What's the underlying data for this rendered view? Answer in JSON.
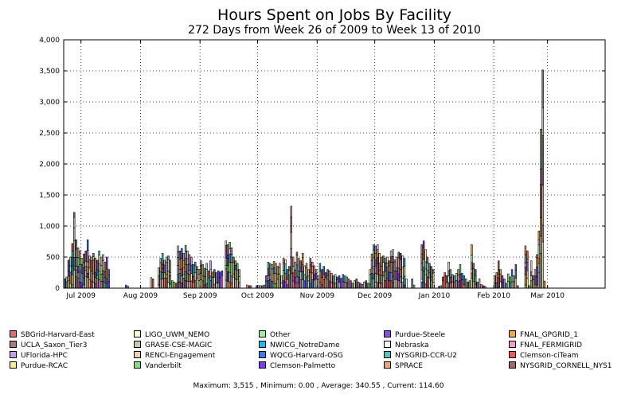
{
  "chart_data": {
    "type": "bar",
    "stacked": true,
    "title": "Hours Spent on Jobs By Facility",
    "subtitle": "272 Days from Week 26 of 2009 to Week 13 of 2010",
    "xlabel": "",
    "ylabel": "",
    "ylim": [
      0,
      4000
    ],
    "y_ticks": [
      "0",
      "500",
      "1,000",
      "1,500",
      "2,000",
      "2,500",
      "3,000",
      "3,500",
      "4,000"
    ],
    "x_ticks": [
      "Jul 2009",
      "Aug 2009",
      "Sep 2009",
      "Oct 2009",
      "Nov 2009",
      "Dec 2009",
      "Jan 2010",
      "Feb 2010",
      "Mar 2010"
    ],
    "grid": true,
    "legend_position": "bottom",
    "series": [
      {
        "name": "SBGrid-Harvard-East",
        "color": "#e66c6c"
      },
      {
        "name": "UCLA_Saxon_Tier3",
        "color": "#b07a7a"
      },
      {
        "name": "UFlorida-HPC",
        "color": "#c79bf0"
      },
      {
        "name": "Purdue-RCAC",
        "color": "#f5f08c"
      },
      {
        "name": "LIGO_UWM_NEMO",
        "color": "#fdfdc8"
      },
      {
        "name": "GRASE-CSE-MAGIC",
        "color": "#c8c8a8"
      },
      {
        "name": "RENCI-Engagement",
        "color": "#f6cfa6"
      },
      {
        "name": "Vanderbilt",
        "color": "#7ce37c"
      },
      {
        "name": "Other",
        "color": "#a6eaa6"
      },
      {
        "name": "NWICG_NotreDame",
        "color": "#2bb5e8"
      },
      {
        "name": "WQCG-Harvard-OSG",
        "color": "#3f7ee8"
      },
      {
        "name": "Clemson-Palmetto",
        "color": "#7b3ee8"
      },
      {
        "name": "Purdue-Steele",
        "color": "#8a4ce8"
      },
      {
        "name": "Nebraska",
        "color": "#ffffff"
      },
      {
        "name": "NYSGRID-CCR-U2",
        "color": "#4ec8c0"
      },
      {
        "name": "SPRACE",
        "color": "#f3a66c"
      },
      {
        "name": "FNAL_GPGRID_1",
        "color": "#f0a850"
      },
      {
        "name": "FNAL_FERMIGRID",
        "color": "#f29cc8"
      },
      {
        "name": "Clemson-ciTeam",
        "color": "#e85a5a"
      },
      {
        "name": "NYSGRID_CORNELL_NYS1",
        "color": "#9c6a6a"
      }
    ],
    "x_start": "2009-06-22",
    "x_end": "2010-03-31",
    "daily_totals": [
      {
        "date": "2009-06-22",
        "value": 150
      },
      {
        "date": "2009-06-23",
        "value": 180
      },
      {
        "date": "2009-06-24",
        "value": 450
      },
      {
        "date": "2009-06-25",
        "value": 500
      },
      {
        "date": "2009-06-26",
        "value": 720
      },
      {
        "date": "2009-06-27",
        "value": 1220
      },
      {
        "date": "2009-06-28",
        "value": 780
      },
      {
        "date": "2009-06-29",
        "value": 650
      },
      {
        "date": "2009-06-30",
        "value": 600
      },
      {
        "date": "2009-07-01",
        "value": 480
      },
      {
        "date": "2009-07-02",
        "value": 550
      },
      {
        "date": "2009-07-03",
        "value": 600
      },
      {
        "date": "2009-07-04",
        "value": 780
      },
      {
        "date": "2009-07-05",
        "value": 520
      },
      {
        "date": "2009-07-06",
        "value": 500
      },
      {
        "date": "2009-07-07",
        "value": 560
      },
      {
        "date": "2009-07-08",
        "value": 480
      },
      {
        "date": "2009-07-09",
        "value": 450
      },
      {
        "date": "2009-07-10",
        "value": 600
      },
      {
        "date": "2009-07-11",
        "value": 500
      },
      {
        "date": "2009-07-12",
        "value": 540
      },
      {
        "date": "2009-07-13",
        "value": 420
      },
      {
        "date": "2009-07-14",
        "value": 500
      },
      {
        "date": "2009-07-15",
        "value": 300
      },
      {
        "date": "2009-07-24",
        "value": 50
      },
      {
        "date": "2009-07-25",
        "value": 30
      },
      {
        "date": "2009-08-06",
        "value": 170
      },
      {
        "date": "2009-08-07",
        "value": 150
      },
      {
        "date": "2009-08-10",
        "value": 330
      },
      {
        "date": "2009-08-11",
        "value": 480
      },
      {
        "date": "2009-08-12",
        "value": 560
      },
      {
        "date": "2009-08-13",
        "value": 450
      },
      {
        "date": "2009-08-14",
        "value": 500
      },
      {
        "date": "2009-08-15",
        "value": 520
      },
      {
        "date": "2009-08-16",
        "value": 450
      },
      {
        "date": "2009-08-17",
        "value": 120
      },
      {
        "date": "2009-08-18",
        "value": 100
      },
      {
        "date": "2009-08-19",
        "value": 80
      },
      {
        "date": "2009-08-20",
        "value": 680
      },
      {
        "date": "2009-08-21",
        "value": 600
      },
      {
        "date": "2009-08-22",
        "value": 640
      },
      {
        "date": "2009-08-23",
        "value": 560
      },
      {
        "date": "2009-08-24",
        "value": 690
      },
      {
        "date": "2009-08-25",
        "value": 600
      },
      {
        "date": "2009-08-26",
        "value": 540
      },
      {
        "date": "2009-08-27",
        "value": 500
      },
      {
        "date": "2009-08-28",
        "value": 380
      },
      {
        "date": "2009-08-29",
        "value": 420
      },
      {
        "date": "2009-08-30",
        "value": 350
      },
      {
        "date": "2009-08-31",
        "value": 300
      },
      {
        "date": "2009-09-01",
        "value": 440
      },
      {
        "date": "2009-09-02",
        "value": 380
      },
      {
        "date": "2009-09-03",
        "value": 320
      },
      {
        "date": "2009-09-04",
        "value": 400
      },
      {
        "date": "2009-09-05",
        "value": 280
      },
      {
        "date": "2009-09-06",
        "value": 440
      },
      {
        "date": "2009-09-07",
        "value": 260
      },
      {
        "date": "2009-09-08",
        "value": 300
      },
      {
        "date": "2009-09-09",
        "value": 250
      },
      {
        "date": "2009-09-10",
        "value": 280
      },
      {
        "date": "2009-09-11",
        "value": 260
      },
      {
        "date": "2009-09-12",
        "value": 280
      },
      {
        "date": "2009-09-14",
        "value": 760
      },
      {
        "date": "2009-09-15",
        "value": 700
      },
      {
        "date": "2009-09-16",
        "value": 740
      },
      {
        "date": "2009-09-17",
        "value": 650
      },
      {
        "date": "2009-09-18",
        "value": 500
      },
      {
        "date": "2009-09-19",
        "value": 440
      },
      {
        "date": "2009-09-20",
        "value": 400
      },
      {
        "date": "2009-09-21",
        "value": 300
      },
      {
        "date": "2009-09-25",
        "value": 50
      },
      {
        "date": "2009-09-26",
        "value": 40
      },
      {
        "date": "2009-09-27",
        "value": 40
      },
      {
        "date": "2009-09-30",
        "value": 40
      },
      {
        "date": "2009-10-01",
        "value": 40
      },
      {
        "date": "2009-10-02",
        "value": 40
      },
      {
        "date": "2009-10-03",
        "value": 40
      },
      {
        "date": "2009-10-04",
        "value": 50
      },
      {
        "date": "2009-10-05",
        "value": 200
      },
      {
        "date": "2009-10-06",
        "value": 420
      },
      {
        "date": "2009-10-07",
        "value": 400
      },
      {
        "date": "2009-10-08",
        "value": 380
      },
      {
        "date": "2009-10-09",
        "value": 430
      },
      {
        "date": "2009-10-10",
        "value": 400
      },
      {
        "date": "2009-10-11",
        "value": 350
      },
      {
        "date": "2009-10-12",
        "value": 400
      },
      {
        "date": "2009-10-13",
        "value": 200
      },
      {
        "date": "2009-10-14",
        "value": 480
      },
      {
        "date": "2009-10-15",
        "value": 460
      },
      {
        "date": "2009-10-16",
        "value": 300
      },
      {
        "date": "2009-10-17",
        "value": 350
      },
      {
        "date": "2009-10-18",
        "value": 1320
      },
      {
        "date": "2009-10-19",
        "value": 500
      },
      {
        "date": "2009-10-20",
        "value": 420
      },
      {
        "date": "2009-10-21",
        "value": 580
      },
      {
        "date": "2009-10-22",
        "value": 480
      },
      {
        "date": "2009-10-23",
        "value": 440
      },
      {
        "date": "2009-10-24",
        "value": 560
      },
      {
        "date": "2009-10-25",
        "value": 360
      },
      {
        "date": "2009-10-26",
        "value": 400
      },
      {
        "date": "2009-10-27",
        "value": 300
      },
      {
        "date": "2009-10-28",
        "value": 480
      },
      {
        "date": "2009-10-29",
        "value": 420
      },
      {
        "date": "2009-10-30",
        "value": 360
      },
      {
        "date": "2009-10-31",
        "value": 300
      },
      {
        "date": "2009-11-01",
        "value": 200
      },
      {
        "date": "2009-11-02",
        "value": 400
      },
      {
        "date": "2009-11-03",
        "value": 300
      },
      {
        "date": "2009-11-04",
        "value": 350
      },
      {
        "date": "2009-11-05",
        "value": 250
      },
      {
        "date": "2009-11-06",
        "value": 300
      },
      {
        "date": "2009-11-07",
        "value": 280
      },
      {
        "date": "2009-11-08",
        "value": 240
      },
      {
        "date": "2009-11-09",
        "value": 200
      },
      {
        "date": "2009-11-10",
        "value": 220
      },
      {
        "date": "2009-11-11",
        "value": 180
      },
      {
        "date": "2009-11-12",
        "value": 200
      },
      {
        "date": "2009-11-13",
        "value": 160
      },
      {
        "date": "2009-11-14",
        "value": 220
      },
      {
        "date": "2009-11-15",
        "value": 200
      },
      {
        "date": "2009-11-16",
        "value": 180
      },
      {
        "date": "2009-11-17",
        "value": 150
      },
      {
        "date": "2009-11-18",
        "value": 120
      },
      {
        "date": "2009-11-19",
        "value": 80
      },
      {
        "date": "2009-11-20",
        "value": 120
      },
      {
        "date": "2009-11-21",
        "value": 150
      },
      {
        "date": "2009-11-22",
        "value": 100
      },
      {
        "date": "2009-11-23",
        "value": 80
      },
      {
        "date": "2009-11-24",
        "value": 60
      },
      {
        "date": "2009-11-25",
        "value": 100
      },
      {
        "date": "2009-11-26",
        "value": 120
      },
      {
        "date": "2009-11-27",
        "value": 80
      },
      {
        "date": "2009-11-28",
        "value": 300
      },
      {
        "date": "2009-11-29",
        "value": 550
      },
      {
        "date": "2009-11-30",
        "value": 700
      },
      {
        "date": "2009-12-01",
        "value": 680
      },
      {
        "date": "2009-12-02",
        "value": 700
      },
      {
        "date": "2009-12-03",
        "value": 560
      },
      {
        "date": "2009-12-04",
        "value": 500
      },
      {
        "date": "2009-12-05",
        "value": 520
      },
      {
        "date": "2009-12-06",
        "value": 480
      },
      {
        "date": "2009-12-07",
        "value": 500
      },
      {
        "date": "2009-12-08",
        "value": 440
      },
      {
        "date": "2009-12-09",
        "value": 600
      },
      {
        "date": "2009-12-10",
        "value": 620
      },
      {
        "date": "2009-12-11",
        "value": 460
      },
      {
        "date": "2009-12-12",
        "value": 500
      },
      {
        "date": "2009-12-13",
        "value": 580
      },
      {
        "date": "2009-12-14",
        "value": 560
      },
      {
        "date": "2009-12-15",
        "value": 520
      },
      {
        "date": "2009-12-16",
        "value": 480
      },
      {
        "date": "2009-12-17",
        "value": 150
      },
      {
        "date": "2009-12-20",
        "value": 150
      },
      {
        "date": "2009-12-21",
        "value": 50
      },
      {
        "date": "2009-12-25",
        "value": 700
      },
      {
        "date": "2009-12-26",
        "value": 760
      },
      {
        "date": "2009-12-27",
        "value": 620
      },
      {
        "date": "2009-12-28",
        "value": 500
      },
      {
        "date": "2009-12-29",
        "value": 400
      },
      {
        "date": "2009-12-30",
        "value": 350
      },
      {
        "date": "2009-12-31",
        "value": 300
      },
      {
        "date": "2010-01-03",
        "value": 30
      },
      {
        "date": "2010-01-04",
        "value": 40
      },
      {
        "date": "2010-01-05",
        "value": 180
      },
      {
        "date": "2010-01-06",
        "value": 250
      },
      {
        "date": "2010-01-07",
        "value": 200
      },
      {
        "date": "2010-01-08",
        "value": 420
      },
      {
        "date": "2010-01-09",
        "value": 300
      },
      {
        "date": "2010-01-10",
        "value": 220
      },
      {
        "date": "2010-01-11",
        "value": 200
      },
      {
        "date": "2010-01-12",
        "value": 240
      },
      {
        "date": "2010-01-13",
        "value": 300
      },
      {
        "date": "2010-01-14",
        "value": 380
      },
      {
        "date": "2010-01-15",
        "value": 240
      },
      {
        "date": "2010-01-16",
        "value": 200
      },
      {
        "date": "2010-01-17",
        "value": 150
      },
      {
        "date": "2010-01-18",
        "value": 100
      },
      {
        "date": "2010-01-19",
        "value": 120
      },
      {
        "date": "2010-01-20",
        "value": 700
      },
      {
        "date": "2010-01-21",
        "value": 400
      },
      {
        "date": "2010-01-22",
        "value": 300
      },
      {
        "date": "2010-01-23",
        "value": 100
      },
      {
        "date": "2010-01-24",
        "value": 150
      },
      {
        "date": "2010-01-25",
        "value": 60
      },
      {
        "date": "2010-01-26",
        "value": 40
      },
      {
        "date": "2010-01-27",
        "value": 30
      },
      {
        "date": "2010-02-01",
        "value": 200
      },
      {
        "date": "2010-02-02",
        "value": 250
      },
      {
        "date": "2010-02-03",
        "value": 440
      },
      {
        "date": "2010-02-04",
        "value": 300
      },
      {
        "date": "2010-02-05",
        "value": 200
      },
      {
        "date": "2010-02-06",
        "value": 150
      },
      {
        "date": "2010-02-07",
        "value": 80
      },
      {
        "date": "2010-02-08",
        "value": 230
      },
      {
        "date": "2010-02-09",
        "value": 180
      },
      {
        "date": "2010-02-10",
        "value": 300
      },
      {
        "date": "2010-02-11",
        "value": 200
      },
      {
        "date": "2010-02-12",
        "value": 380
      },
      {
        "date": "2010-02-13",
        "value": 40
      },
      {
        "date": "2010-02-17",
        "value": 680
      },
      {
        "date": "2010-02-18",
        "value": 600
      },
      {
        "date": "2010-02-19",
        "value": 40
      },
      {
        "date": "2010-02-20",
        "value": 440
      },
      {
        "date": "2010-02-21",
        "value": 200
      },
      {
        "date": "2010-02-22",
        "value": 300
      },
      {
        "date": "2010-02-23",
        "value": 540
      },
      {
        "date": "2010-02-24",
        "value": 920
      },
      {
        "date": "2010-02-25",
        "value": 2560
      },
      {
        "date": "2010-02-26",
        "value": 3515
      },
      {
        "date": "2010-02-27",
        "value": 114.6
      }
    ]
  },
  "legend": {
    "columns": [
      [
        {
          "label": "SBGrid-Harvard-East",
          "color": "#e66c6c"
        },
        {
          "label": "UCLA_Saxon_Tier3",
          "color": "#b07a7a"
        },
        {
          "label": "UFlorida-HPC",
          "color": "#c79bf0"
        },
        {
          "label": "Purdue-RCAC",
          "color": "#f5f08c"
        }
      ],
      [
        {
          "label": "LIGO_UWM_NEMO",
          "color": "#fdfdc8"
        },
        {
          "label": "GRASE-CSE-MAGIC",
          "color": "#c8c8a8"
        },
        {
          "label": "RENCI-Engagement",
          "color": "#f6cfa6"
        },
        {
          "label": "Vanderbilt",
          "color": "#7ce37c"
        }
      ],
      [
        {
          "label": "Other",
          "color": "#a6eaa6"
        },
        {
          "label": "NWICG_NotreDame",
          "color": "#2bb5e8"
        },
        {
          "label": "WQCG-Harvard-OSG",
          "color": "#3f7ee8"
        },
        {
          "label": "Clemson-Palmetto",
          "color": "#7b3ee8"
        }
      ],
      [
        {
          "label": "Purdue-Steele",
          "color": "#8a4ce8"
        },
        {
          "label": "Nebraska",
          "color": "#ffffff"
        },
        {
          "label": "NYSGRID-CCR-U2",
          "color": "#4ec8c0"
        },
        {
          "label": "SPRACE",
          "color": "#f3a66c"
        }
      ],
      [
        {
          "label": "FNAL_GPGRID_1",
          "color": "#f0a850"
        },
        {
          "label": "FNAL_FERMIGRID",
          "color": "#f29cc8"
        },
        {
          "label": "Clemson-ciTeam",
          "color": "#e85a5a"
        },
        {
          "label": "NYSGRID_CORNELL_NYS1",
          "color": "#9c6a6a"
        }
      ]
    ]
  },
  "footer": {
    "stats": "Maximum: 3,515 , Minimum: 0.00 , Average: 340.55 , Current: 114.60"
  }
}
